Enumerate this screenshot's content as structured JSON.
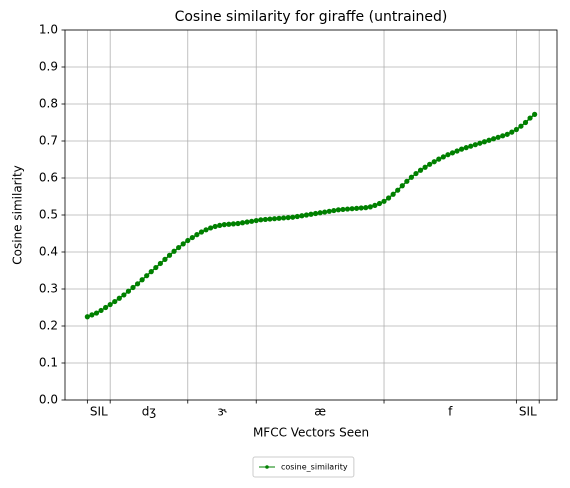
{
  "chart_data": {
    "type": "line",
    "title": "Cosine similarity for giraffe (untrained)",
    "xlabel": "MFCC Vectors Seen",
    "ylabel": "Cosine similarity",
    "x": [
      0,
      1,
      2,
      3,
      4,
      5,
      6,
      7,
      8,
      9,
      10,
      11,
      12,
      13,
      14,
      15,
      16,
      17,
      18,
      19,
      20,
      21,
      22,
      23,
      24,
      25,
      26,
      27,
      28,
      29,
      30,
      31,
      32,
      33,
      34,
      35,
      36,
      37,
      38,
      39,
      40,
      41,
      42,
      43,
      44,
      45,
      46,
      47,
      48,
      49,
      50,
      51,
      52,
      53,
      54,
      55,
      56,
      57,
      58,
      59,
      60,
      61,
      62,
      63,
      64,
      65,
      66,
      67,
      68,
      69,
      70,
      71,
      72,
      73,
      74,
      75,
      76,
      77,
      78,
      79,
      80,
      81,
      82,
      83,
      84,
      85,
      86,
      87,
      88,
      89,
      90,
      91,
      92,
      93,
      94,
      95,
      96,
      97,
      98
    ],
    "series": [
      {
        "name": "cosine_similarity",
        "color": "#008000",
        "values": [
          0.225,
          0.23,
          0.235,
          0.242,
          0.25,
          0.258,
          0.266,
          0.275,
          0.284,
          0.294,
          0.304,
          0.314,
          0.325,
          0.336,
          0.347,
          0.358,
          0.369,
          0.38,
          0.391,
          0.402,
          0.412,
          0.422,
          0.431,
          0.439,
          0.447,
          0.454,
          0.46,
          0.465,
          0.469,
          0.472,
          0.474,
          0.475,
          0.476,
          0.477,
          0.479,
          0.481,
          0.483,
          0.485,
          0.487,
          0.488,
          0.489,
          0.49,
          0.491,
          0.492,
          0.493,
          0.494,
          0.496,
          0.498,
          0.5,
          0.502,
          0.504,
          0.506,
          0.508,
          0.51,
          0.512,
          0.514,
          0.515,
          0.516,
          0.517,
          0.518,
          0.519,
          0.52,
          0.522,
          0.526,
          0.531,
          0.537,
          0.546,
          0.556,
          0.567,
          0.579,
          0.591,
          0.602,
          0.612,
          0.621,
          0.629,
          0.637,
          0.644,
          0.651,
          0.657,
          0.663,
          0.668,
          0.673,
          0.678,
          0.682,
          0.686,
          0.69,
          0.694,
          0.698,
          0.702,
          0.706,
          0.71,
          0.714,
          0.718,
          0.724,
          0.731,
          0.74,
          0.75,
          0.762,
          0.772
        ]
      }
    ],
    "xlim": [
      -4.9,
      102.9
    ],
    "x_boundaries": [
      0,
      5,
      22,
      37,
      65,
      94,
      99
    ],
    "xticks": [
      {
        "value": 2.5,
        "label": "SIL"
      },
      {
        "value": 13.5,
        "label": "dʒ"
      },
      {
        "value": 29.5,
        "label": "ɝ"
      },
      {
        "value": 51,
        "label": "æ"
      },
      {
        "value": 79.5,
        "label": "f"
      },
      {
        "value": 96.5,
        "label": "SIL"
      }
    ],
    "ylim": [
      0,
      1
    ],
    "yticks": [
      {
        "value": 0,
        "label": "0.0"
      },
      {
        "value": 0.1,
        "label": "0.1"
      },
      {
        "value": 0.2,
        "label": "0.2"
      },
      {
        "value": 0.3,
        "label": "0.3"
      },
      {
        "value": 0.4,
        "label": "0.4"
      },
      {
        "value": 0.5,
        "label": "0.5"
      },
      {
        "value": 0.6,
        "label": "0.6"
      },
      {
        "value": 0.7,
        "label": "0.7"
      },
      {
        "value": 0.8,
        "label": "0.8"
      },
      {
        "value": 0.9,
        "label": "0.9"
      },
      {
        "value": 1,
        "label": "1.0"
      }
    ],
    "grid": true,
    "legend": "lower center"
  }
}
